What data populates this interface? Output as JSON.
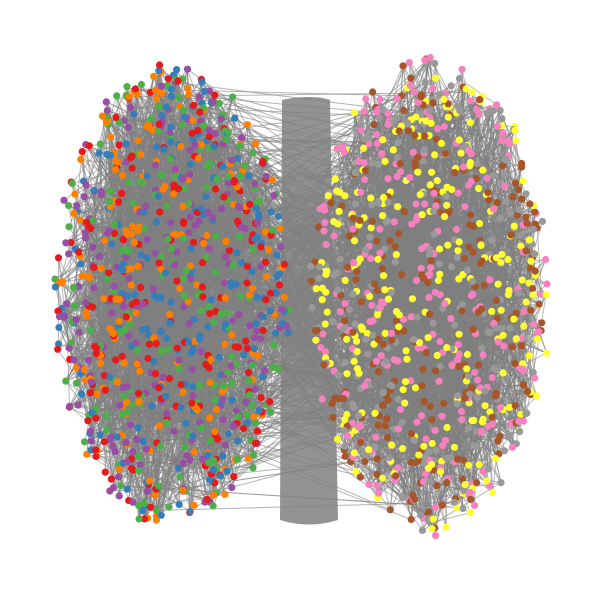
{
  "figure": {
    "type": "network-graph",
    "background": "#ffffff",
    "edge_color": "#808080",
    "layout": "two-clusters-side-by-side"
  },
  "clusters": [
    {
      "name": "left-cluster",
      "side": "left",
      "node_colors": [
        "#984ea3",
        "#ff7f00",
        "#4daf4a",
        "#377eb8",
        "#e41a1c"
      ]
    },
    {
      "name": "right-cluster",
      "side": "right",
      "node_colors": [
        "#999999",
        "#f781bf",
        "#a65628",
        "#ffff33"
      ]
    }
  ]
}
